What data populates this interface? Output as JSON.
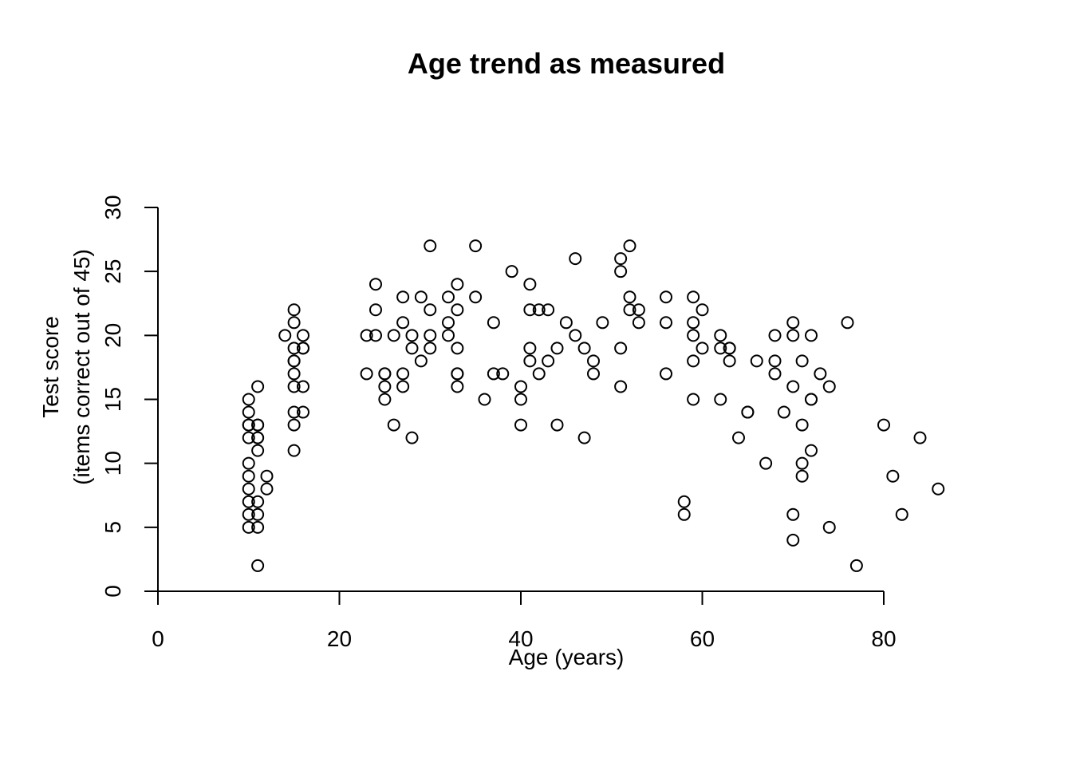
{
  "chart_data": {
    "type": "scatter",
    "title": "Age trend as measured",
    "xlabel": "Age (years)",
    "ylabel_lines": [
      "Test score",
      "(items correct out of 45)"
    ],
    "xlim": [
      0,
      80
    ],
    "ylim": [
      0,
      30
    ],
    "x_ticks": [
      0,
      20,
      40,
      60,
      80
    ],
    "y_ticks": [
      0,
      5,
      10,
      15,
      20,
      25,
      30
    ],
    "grid": false,
    "points": [
      [
        10,
        15
      ],
      [
        10,
        14
      ],
      [
        10,
        13
      ],
      [
        10,
        13
      ],
      [
        10,
        12
      ],
      [
        10,
        10
      ],
      [
        10,
        9
      ],
      [
        10,
        8
      ],
      [
        10,
        7
      ],
      [
        10,
        6
      ],
      [
        10,
        5
      ],
      [
        11,
        16
      ],
      [
        11,
        13
      ],
      [
        11,
        13
      ],
      [
        11,
        12
      ],
      [
        11,
        12
      ],
      [
        11,
        11
      ],
      [
        11,
        7
      ],
      [
        11,
        6
      ],
      [
        11,
        5
      ],
      [
        11,
        2
      ],
      [
        12,
        9
      ],
      [
        12,
        8
      ],
      [
        14,
        20
      ],
      [
        15,
        22
      ],
      [
        15,
        21
      ],
      [
        15,
        19
      ],
      [
        15,
        18
      ],
      [
        15,
        18
      ],
      [
        15,
        17
      ],
      [
        15,
        16
      ],
      [
        15,
        14
      ],
      [
        15,
        13
      ],
      [
        15,
        11
      ],
      [
        16,
        20
      ],
      [
        16,
        19
      ],
      [
        16,
        19
      ],
      [
        16,
        16
      ],
      [
        16,
        14
      ],
      [
        23,
        20
      ],
      [
        23,
        17
      ],
      [
        24,
        24
      ],
      [
        24,
        22
      ],
      [
        24,
        20
      ],
      [
        25,
        17
      ],
      [
        25,
        17
      ],
      [
        25,
        16
      ],
      [
        25,
        15
      ],
      [
        26,
        20
      ],
      [
        26,
        13
      ],
      [
        27,
        23
      ],
      [
        27,
        21
      ],
      [
        27,
        17
      ],
      [
        27,
        16
      ],
      [
        28,
        20
      ],
      [
        28,
        19
      ],
      [
        28,
        12
      ],
      [
        29,
        23
      ],
      [
        29,
        18
      ],
      [
        30,
        27
      ],
      [
        30,
        22
      ],
      [
        30,
        20
      ],
      [
        30,
        19
      ],
      [
        32,
        23
      ],
      [
        32,
        21
      ],
      [
        32,
        20
      ],
      [
        33,
        24
      ],
      [
        33,
        22
      ],
      [
        33,
        19
      ],
      [
        33,
        17
      ],
      [
        33,
        17
      ],
      [
        33,
        16
      ],
      [
        35,
        27
      ],
      [
        35,
        23
      ],
      [
        36,
        15
      ],
      [
        37,
        21
      ],
      [
        37,
        17
      ],
      [
        38,
        17
      ],
      [
        39,
        25
      ],
      [
        40,
        16
      ],
      [
        40,
        15
      ],
      [
        40,
        13
      ],
      [
        41,
        24
      ],
      [
        41,
        22
      ],
      [
        41,
        19
      ],
      [
        41,
        18
      ],
      [
        42,
        22
      ],
      [
        42,
        17
      ],
      [
        43,
        22
      ],
      [
        43,
        18
      ],
      [
        44,
        19
      ],
      [
        44,
        13
      ],
      [
        45,
        21
      ],
      [
        46,
        26
      ],
      [
        46,
        20
      ],
      [
        47,
        19
      ],
      [
        47,
        12
      ],
      [
        48,
        18
      ],
      [
        48,
        17
      ],
      [
        49,
        21
      ],
      [
        51,
        26
      ],
      [
        51,
        25
      ],
      [
        51,
        19
      ],
      [
        51,
        16
      ],
      [
        52,
        27
      ],
      [
        52,
        23
      ],
      [
        52,
        22
      ],
      [
        53,
        22
      ],
      [
        53,
        21
      ],
      [
        56,
        23
      ],
      [
        56,
        21
      ],
      [
        56,
        17
      ],
      [
        58,
        7
      ],
      [
        58,
        6
      ],
      [
        59,
        23
      ],
      [
        59,
        21
      ],
      [
        59,
        20
      ],
      [
        59,
        18
      ],
      [
        59,
        15
      ],
      [
        60,
        22
      ],
      [
        60,
        19
      ],
      [
        62,
        20
      ],
      [
        62,
        19
      ],
      [
        62,
        15
      ],
      [
        63,
        19
      ],
      [
        63,
        19
      ],
      [
        63,
        18
      ],
      [
        64,
        12
      ],
      [
        65,
        14
      ],
      [
        65,
        14
      ],
      [
        66,
        18
      ],
      [
        67,
        10
      ],
      [
        68,
        20
      ],
      [
        68,
        18
      ],
      [
        68,
        17
      ],
      [
        69,
        14
      ],
      [
        70,
        21
      ],
      [
        70,
        20
      ],
      [
        70,
        16
      ],
      [
        70,
        6
      ],
      [
        70,
        4
      ],
      [
        71,
        18
      ],
      [
        71,
        13
      ],
      [
        71,
        10
      ],
      [
        71,
        9
      ],
      [
        72,
        20
      ],
      [
        72,
        15
      ],
      [
        72,
        15
      ],
      [
        72,
        11
      ],
      [
        73,
        17
      ],
      [
        74,
        16
      ],
      [
        74,
        5
      ],
      [
        76,
        21
      ],
      [
        77,
        2
      ],
      [
        80,
        13
      ],
      [
        81,
        9
      ],
      [
        82,
        6
      ],
      [
        84,
        12
      ],
      [
        86,
        8
      ]
    ]
  }
}
